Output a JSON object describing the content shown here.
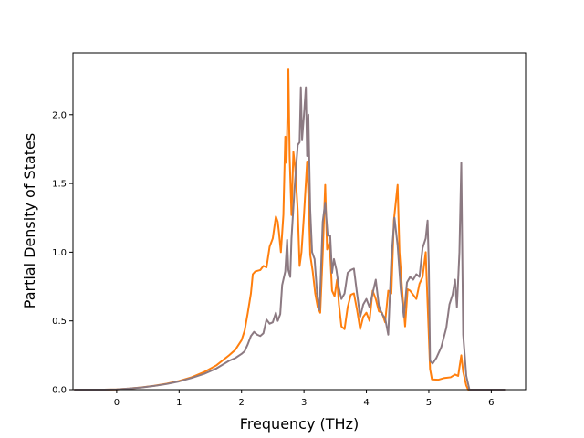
{
  "chart_data": {
    "type": "line",
    "title": "",
    "xlabel": "Frequency (THz)",
    "ylabel": "Partial Density of States",
    "xlim": [
      -0.7,
      6.55
    ],
    "ylim": [
      0.0,
      2.45
    ],
    "xticks": [
      0,
      1,
      2,
      3,
      4,
      5,
      6
    ],
    "xtick_labels": [
      "0",
      "1",
      "2",
      "3",
      "4",
      "5",
      "6"
    ],
    "yticks": [
      0.0,
      0.5,
      1.0,
      1.5,
      2.0
    ],
    "ytick_labels": [
      "0.0",
      "0.5",
      "1.0",
      "1.5",
      "2.0"
    ],
    "grid": false,
    "legend": "none",
    "series": [
      {
        "color": "#ff7f0e",
        "points": [
          [
            -0.68,
            0.0
          ],
          [
            -0.2,
            0.0
          ],
          [
            0.0,
            0.002
          ],
          [
            0.2,
            0.008
          ],
          [
            0.4,
            0.017
          ],
          [
            0.6,
            0.028
          ],
          [
            0.8,
            0.043
          ],
          [
            1.0,
            0.063
          ],
          [
            1.2,
            0.09
          ],
          [
            1.4,
            0.128
          ],
          [
            1.6,
            0.178
          ],
          [
            1.8,
            0.25
          ],
          [
            1.9,
            0.29
          ],
          [
            2.0,
            0.36
          ],
          [
            2.05,
            0.43
          ],
          [
            2.1,
            0.56
          ],
          [
            2.15,
            0.7
          ],
          [
            2.18,
            0.84
          ],
          [
            2.22,
            0.86
          ],
          [
            2.3,
            0.87
          ],
          [
            2.35,
            0.9
          ],
          [
            2.4,
            0.89
          ],
          [
            2.45,
            1.04
          ],
          [
            2.5,
            1.1
          ],
          [
            2.55,
            1.26
          ],
          [
            2.58,
            1.22
          ],
          [
            2.6,
            1.14
          ],
          [
            2.63,
            1.0
          ],
          [
            2.67,
            1.27
          ],
          [
            2.7,
            1.84
          ],
          [
            2.72,
            1.65
          ],
          [
            2.75,
            2.33
          ],
          [
            2.77,
            1.7
          ],
          [
            2.8,
            1.27
          ],
          [
            2.83,
            1.73
          ],
          [
            2.86,
            1.61
          ],
          [
            2.9,
            1.3
          ],
          [
            2.93,
            0.9
          ],
          [
            2.96,
            1.0
          ],
          [
            3.0,
            1.27
          ],
          [
            3.05,
            1.66
          ],
          [
            3.08,
            1.3
          ],
          [
            3.1,
            0.98
          ],
          [
            3.14,
            0.86
          ],
          [
            3.18,
            0.7
          ],
          [
            3.22,
            0.6
          ],
          [
            3.26,
            0.56
          ],
          [
            3.3,
            0.98
          ],
          [
            3.34,
            1.49
          ],
          [
            3.37,
            1.02
          ],
          [
            3.41,
            1.07
          ],
          [
            3.45,
            0.72
          ],
          [
            3.49,
            0.68
          ],
          [
            3.53,
            0.8
          ],
          [
            3.56,
            0.62
          ],
          [
            3.6,
            0.46
          ],
          [
            3.65,
            0.44
          ],
          [
            3.7,
            0.6
          ],
          [
            3.75,
            0.69
          ],
          [
            3.8,
            0.7
          ],
          [
            3.85,
            0.58
          ],
          [
            3.9,
            0.44
          ],
          [
            3.95,
            0.53
          ],
          [
            4.0,
            0.56
          ],
          [
            4.05,
            0.5
          ],
          [
            4.1,
            0.72
          ],
          [
            4.15,
            0.66
          ],
          [
            4.2,
            0.57
          ],
          [
            4.25,
            0.56
          ],
          [
            4.3,
            0.49
          ],
          [
            4.35,
            0.72
          ],
          [
            4.4,
            0.7
          ],
          [
            4.44,
            1.23
          ],
          [
            4.5,
            1.49
          ],
          [
            4.53,
            1.0
          ],
          [
            4.58,
            0.68
          ],
          [
            4.62,
            0.46
          ],
          [
            4.66,
            0.73
          ],
          [
            4.7,
            0.72
          ],
          [
            4.75,
            0.69
          ],
          [
            4.8,
            0.66
          ],
          [
            4.85,
            0.77
          ],
          [
            4.9,
            0.82
          ],
          [
            4.95,
            1.0
          ],
          [
            4.98,
            0.63
          ],
          [
            5.02,
            0.15
          ],
          [
            5.05,
            0.075
          ],
          [
            5.15,
            0.072
          ],
          [
            5.25,
            0.085
          ],
          [
            5.35,
            0.09
          ],
          [
            5.42,
            0.11
          ],
          [
            5.47,
            0.1
          ],
          [
            5.52,
            0.25
          ],
          [
            5.55,
            0.13
          ],
          [
            5.6,
            0.03
          ],
          [
            5.63,
            0.0
          ],
          [
            6.22,
            0.0
          ]
        ]
      },
      {
        "color": "#8c7a82",
        "points": [
          [
            -0.68,
            0.0
          ],
          [
            -0.2,
            0.0
          ],
          [
            0.0,
            0.002
          ],
          [
            0.2,
            0.008
          ],
          [
            0.4,
            0.016
          ],
          [
            0.6,
            0.027
          ],
          [
            0.8,
            0.041
          ],
          [
            1.0,
            0.06
          ],
          [
            1.2,
            0.085
          ],
          [
            1.4,
            0.115
          ],
          [
            1.6,
            0.155
          ],
          [
            1.8,
            0.21
          ],
          [
            1.9,
            0.23
          ],
          [
            2.0,
            0.26
          ],
          [
            2.05,
            0.28
          ],
          [
            2.1,
            0.33
          ],
          [
            2.15,
            0.39
          ],
          [
            2.2,
            0.42
          ],
          [
            2.25,
            0.4
          ],
          [
            2.3,
            0.39
          ],
          [
            2.35,
            0.41
          ],
          [
            2.4,
            0.51
          ],
          [
            2.45,
            0.48
          ],
          [
            2.5,
            0.49
          ],
          [
            2.55,
            0.56
          ],
          [
            2.58,
            0.5
          ],
          [
            2.62,
            0.55
          ],
          [
            2.65,
            0.76
          ],
          [
            2.7,
            0.86
          ],
          [
            2.73,
            1.09
          ],
          [
            2.75,
            0.87
          ],
          [
            2.78,
            0.82
          ],
          [
            2.8,
            1.1
          ],
          [
            2.85,
            1.47
          ],
          [
            2.9,
            1.78
          ],
          [
            2.93,
            1.8
          ],
          [
            2.95,
            2.2
          ],
          [
            2.97,
            1.82
          ],
          [
            3.0,
            2.0
          ],
          [
            3.03,
            2.2
          ],
          [
            3.05,
            1.7
          ],
          [
            3.07,
            2.0
          ],
          [
            3.1,
            1.31
          ],
          [
            3.13,
            1.0
          ],
          [
            3.17,
            0.95
          ],
          [
            3.21,
            0.7
          ],
          [
            3.25,
            0.58
          ],
          [
            3.3,
            1.22
          ],
          [
            3.34,
            1.36
          ],
          [
            3.38,
            1.12
          ],
          [
            3.42,
            1.12
          ],
          [
            3.45,
            0.85
          ],
          [
            3.48,
            0.95
          ],
          [
            3.52,
            0.87
          ],
          [
            3.56,
            0.74
          ],
          [
            3.6,
            0.66
          ],
          [
            3.65,
            0.7
          ],
          [
            3.7,
            0.85
          ],
          [
            3.75,
            0.87
          ],
          [
            3.8,
            0.88
          ],
          [
            3.85,
            0.7
          ],
          [
            3.9,
            0.53
          ],
          [
            3.95,
            0.62
          ],
          [
            4.0,
            0.66
          ],
          [
            4.05,
            0.6
          ],
          [
            4.1,
            0.7
          ],
          [
            4.15,
            0.8
          ],
          [
            4.2,
            0.61
          ],
          [
            4.25,
            0.55
          ],
          [
            4.3,
            0.52
          ],
          [
            4.35,
            0.4
          ],
          [
            4.4,
            0.95
          ],
          [
            4.45,
            1.25
          ],
          [
            4.5,
            1.05
          ],
          [
            4.55,
            0.73
          ],
          [
            4.6,
            0.53
          ],
          [
            4.65,
            0.78
          ],
          [
            4.7,
            0.82
          ],
          [
            4.75,
            0.8
          ],
          [
            4.8,
            0.84
          ],
          [
            4.85,
            0.82
          ],
          [
            4.9,
            1.03
          ],
          [
            4.95,
            1.1
          ],
          [
            4.98,
            1.23
          ],
          [
            5.0,
            0.9
          ],
          [
            5.02,
            0.21
          ],
          [
            5.06,
            0.19
          ],
          [
            5.12,
            0.23
          ],
          [
            5.2,
            0.31
          ],
          [
            5.28,
            0.45
          ],
          [
            5.33,
            0.62
          ],
          [
            5.38,
            0.69
          ],
          [
            5.42,
            0.8
          ],
          [
            5.45,
            0.6
          ],
          [
            5.49,
            1.0
          ],
          [
            5.52,
            1.65
          ],
          [
            5.55,
            0.4
          ],
          [
            5.6,
            0.1
          ],
          [
            5.65,
            0.0
          ],
          [
            6.22,
            0.0
          ]
        ]
      }
    ]
  }
}
